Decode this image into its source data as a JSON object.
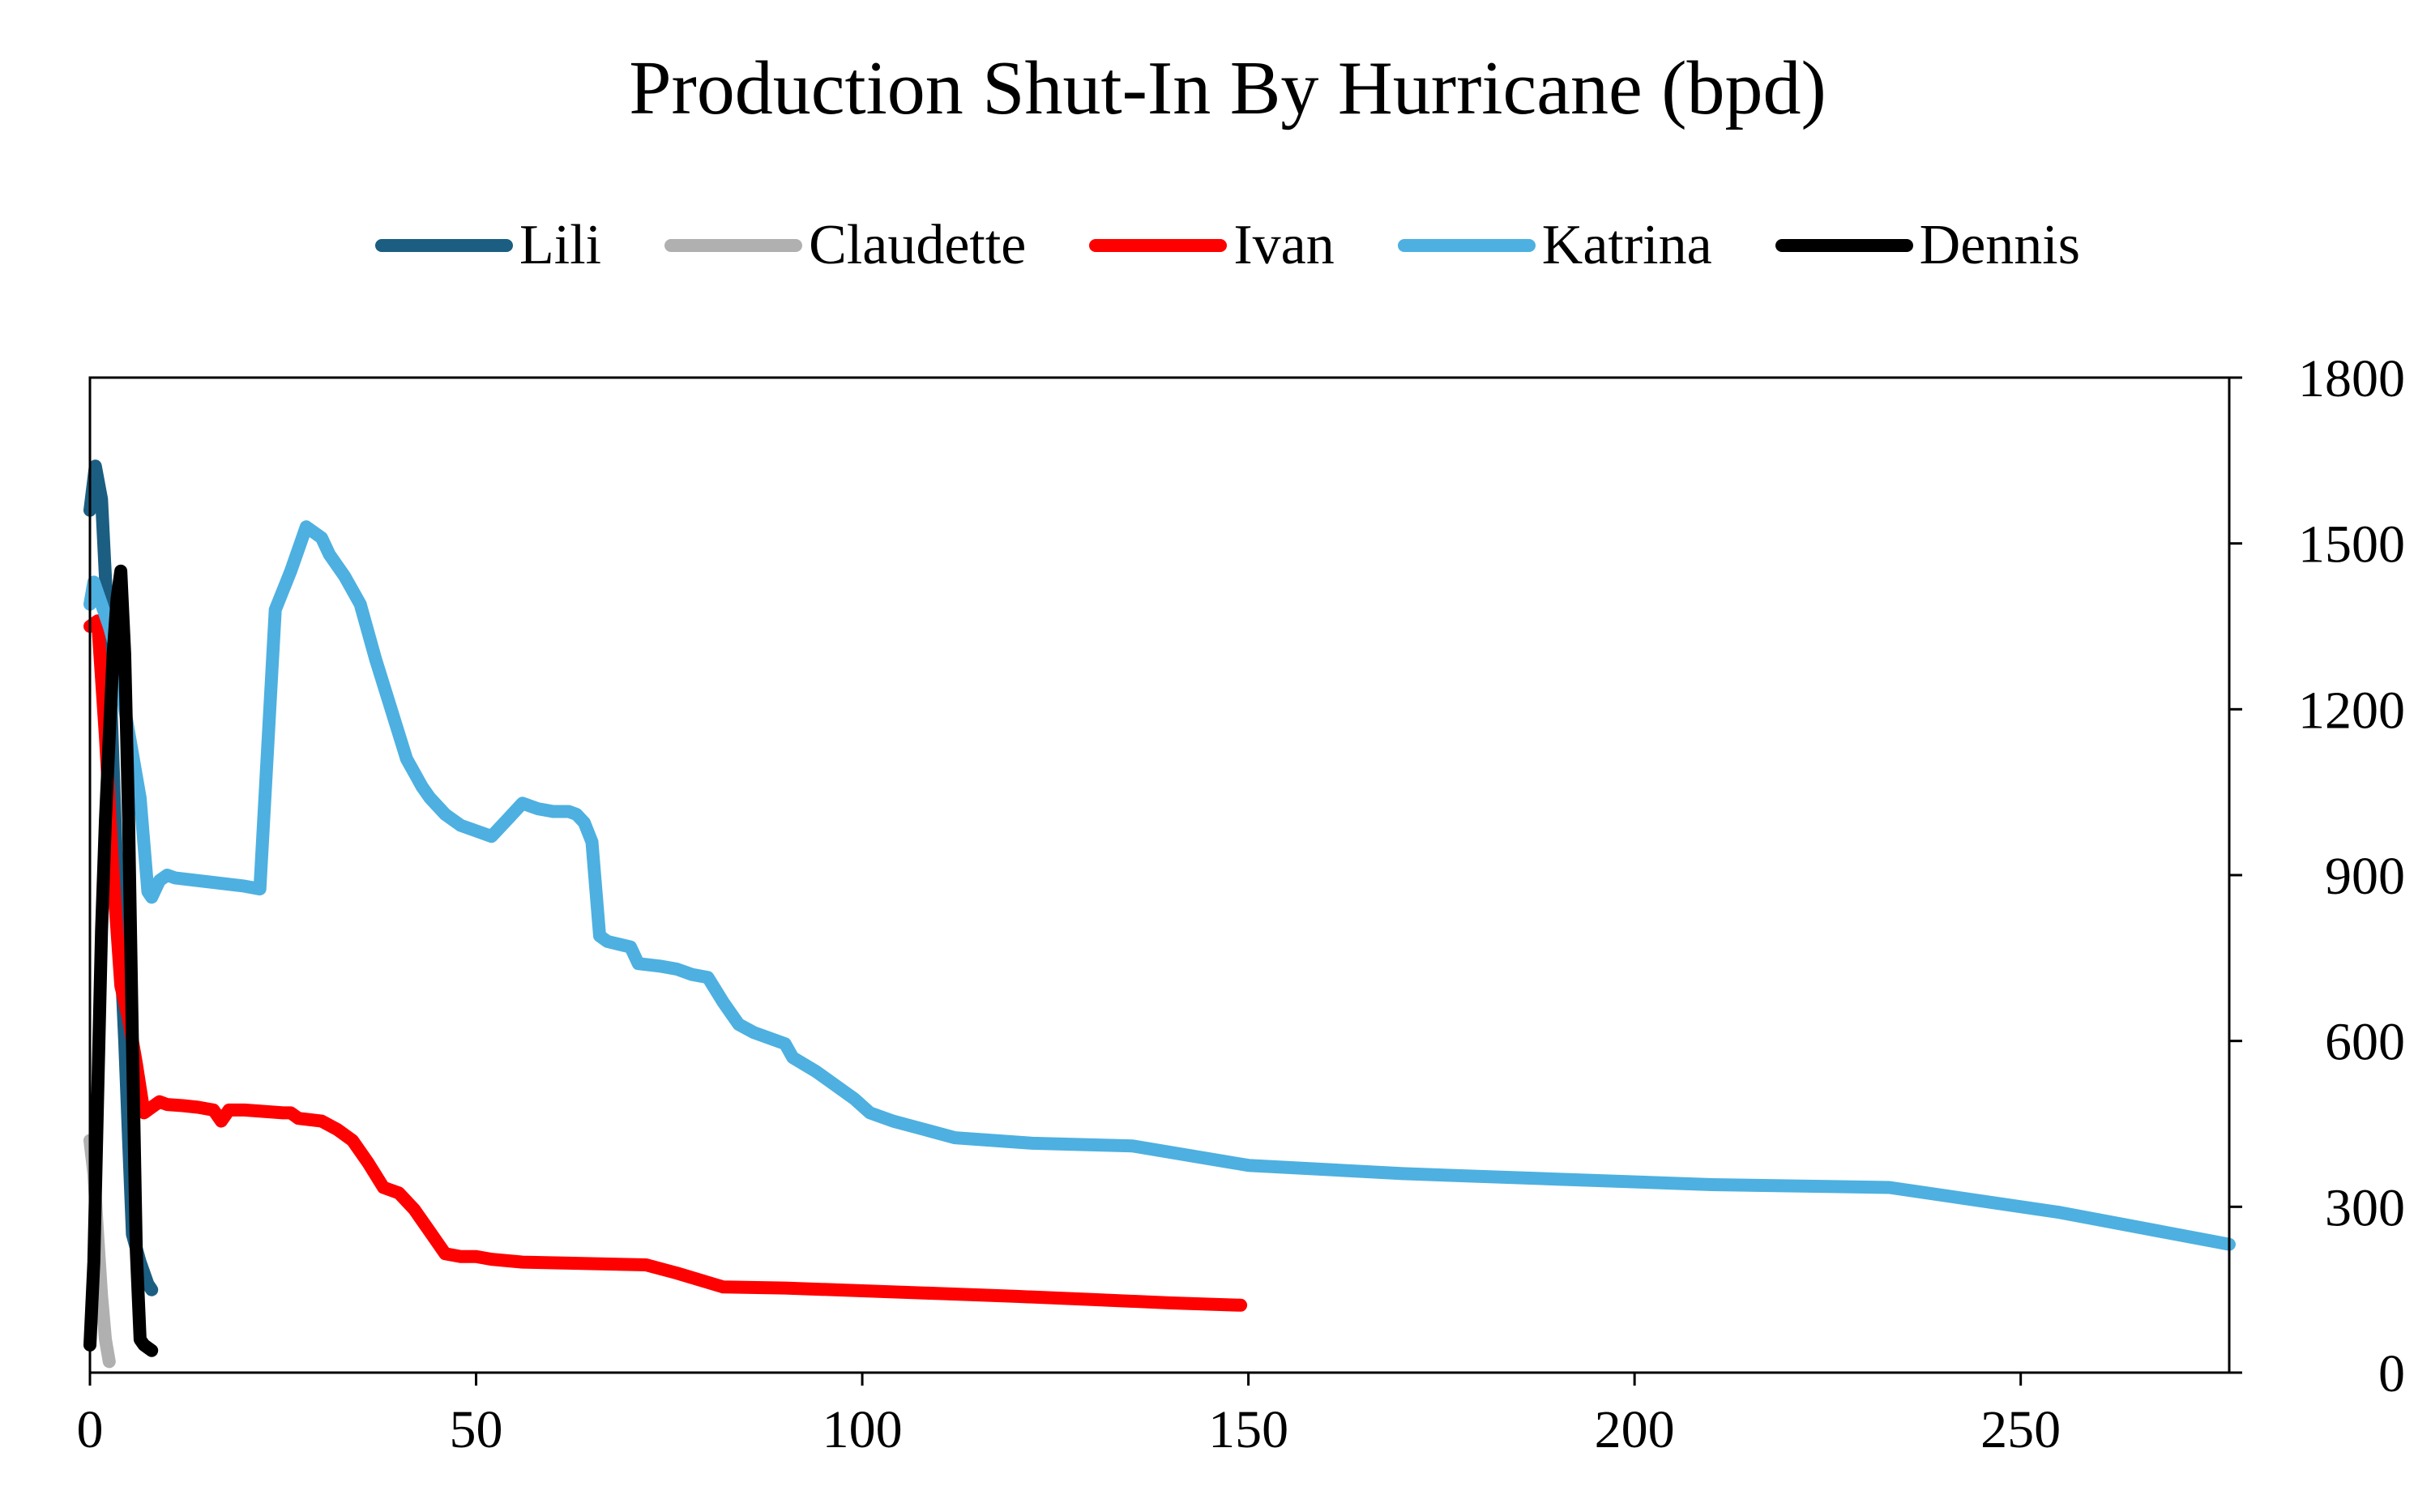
{
  "chart_data": {
    "type": "line",
    "title": "Production Shut-In By Hurricane (bpd)",
    "xlabel": "",
    "ylabel": "",
    "xlim": [
      0,
      277
    ],
    "ylim": [
      0,
      1800
    ],
    "xticks": [
      0,
      50,
      100,
      150,
      200,
      250
    ],
    "yticks": [
      0,
      300,
      600,
      900,
      1200,
      1500,
      1800
    ],
    "y_axis_side": "right",
    "grid": false,
    "legend_position": "top-center",
    "series": [
      {
        "name": "Lili",
        "color": "#1b5e82",
        "x": [
          0,
          0.7,
          1.5,
          2.5,
          3.5,
          4.5,
          5,
          5.5,
          6.5,
          7.5,
          8
        ],
        "y": [
          1560,
          1640,
          1580,
          1300,
          900,
          600,
          420,
          250,
          200,
          160,
          150
        ]
      },
      {
        "name": "Claudette",
        "color": "#b0b0b0",
        "x": [
          0,
          0.5,
          1,
          1.5,
          2,
          2.5
        ],
        "y": [
          420,
          360,
          250,
          140,
          60,
          20
        ]
      },
      {
        "name": "Ivan",
        "color": "#ff0000",
        "x": [
          0,
          1,
          2,
          3,
          4,
          5,
          6,
          7,
          8,
          9,
          10,
          12,
          14,
          16,
          17,
          18,
          20,
          25,
          26,
          27,
          30,
          32,
          34,
          36,
          38,
          40,
          42,
          44,
          46,
          48,
          50,
          52,
          56,
          62,
          72,
          76,
          82,
          90,
          100,
          110,
          120,
          130,
          140,
          149
        ],
        "y": [
          1350,
          1360,
          1150,
          900,
          700,
          640,
          560,
          470,
          480,
          490,
          485,
          483,
          480,
          475,
          455,
          475,
          475,
          470,
          470,
          460,
          455,
          440,
          420,
          380,
          335,
          325,
          295,
          255,
          215,
          210,
          210,
          205,
          200,
          198,
          195,
          180,
          155,
          153,
          148,
          143,
          138,
          132,
          126,
          122
        ]
      },
      {
        "name": "Katrina",
        "color": "#4db0e0",
        "x": [
          0,
          0.5,
          1.5,
          2.5,
          3.5,
          4.5,
          5.5,
          6.5,
          7.5,
          8,
          9,
          10,
          11,
          20,
          22,
          24,
          26,
          28,
          30,
          31,
          33,
          35,
          37,
          39,
          41,
          43,
          44,
          46,
          48,
          50,
          52,
          54,
          56,
          58,
          60,
          62,
          63,
          64,
          65,
          66,
          67,
          70,
          71,
          74,
          76,
          78,
          80,
          82,
          84,
          86,
          90,
          91,
          94,
          98,
          99,
          101,
          104,
          108,
          112,
          122,
          135,
          150,
          170,
          190,
          210,
          233,
          255,
          277
        ],
        "y": [
          1390,
          1430,
          1390,
          1350,
          1300,
          1200,
          1120,
          1040,
          870,
          860,
          890,
          900,
          895,
          880,
          875,
          1380,
          1450,
          1530,
          1510,
          1480,
          1440,
          1390,
          1290,
          1200,
          1110,
          1060,
          1040,
          1010,
          990,
          980,
          970,
          1000,
          1030,
          1020,
          1015,
          1015,
          1010,
          995,
          960,
          790,
          780,
          770,
          740,
          735,
          730,
          720,
          715,
          670,
          630,
          615,
          595,
          570,
          545,
          505,
          495,
          470,
          455,
          440,
          425,
          415,
          410,
          375,
          360,
          350,
          340,
          335,
          290,
          232
        ]
      },
      {
        "name": "Dennis",
        "color": "#000000",
        "x": [
          0,
          0.5,
          1,
          1.5,
          2,
          2.5,
          3,
          3.5,
          4,
          4.5,
          5,
          5.5,
          6,
          6.5,
          7,
          8
        ],
        "y": [
          50,
          200,
          500,
          800,
          1000,
          1150,
          1300,
          1400,
          1450,
          1300,
          1000,
          600,
          220,
          60,
          50,
          40
        ]
      }
    ]
  }
}
